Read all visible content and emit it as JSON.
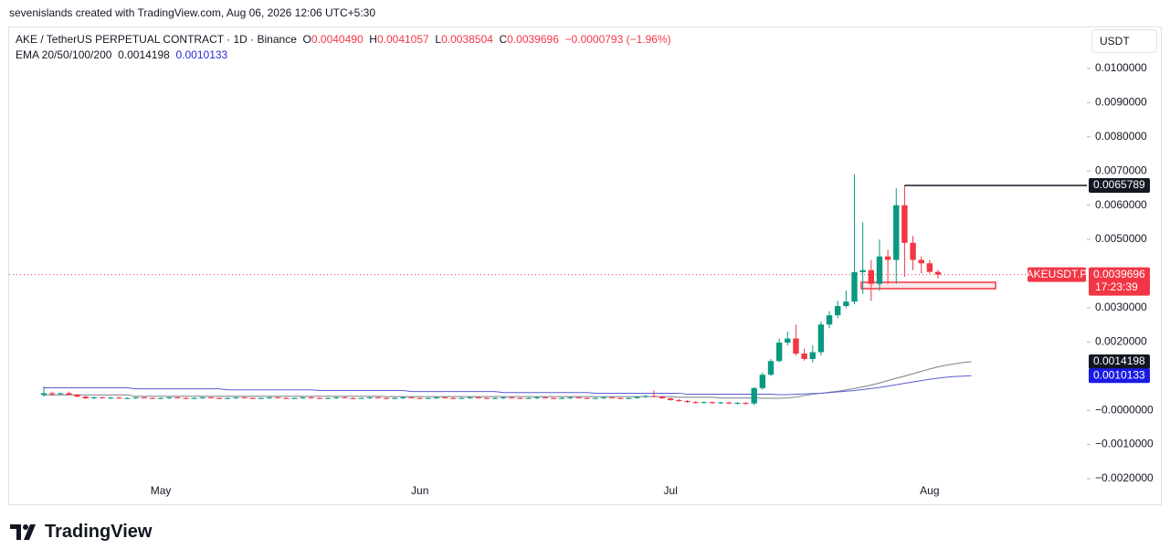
{
  "header": {
    "attribution": "sevenislands created with TradingView.com, Aug 06, 2026 12:06 UTC+5:30"
  },
  "footer": {
    "brand": "TradingView"
  },
  "chart_data": {
    "type": "candlestick",
    "title": "AKE / TetherUS PERPETUAL CONTRACT · 1D · Binance",
    "ohlc_legend": [
      [
        "O",
        "0.0040490"
      ],
      [
        "H",
        "0.0041057"
      ],
      [
        "L",
        "0.0038504"
      ],
      [
        "C",
        "0.0039696"
      ]
    ],
    "change": "−0.0000793 (−1.96%)",
    "ema_legend": "EMA 20/50/100/200",
    "currency": "USDT",
    "symbol": "AKEUSDT.P",
    "countdown": "17:23:39",
    "up_color": "#089981",
    "down_color": "#f23645",
    "ylim": [
      -0.002,
      0.0112
    ],
    "yticks": [
      {
        "value": 0.01,
        "label": "0.0100000"
      },
      {
        "value": 0.009,
        "label": "0.0090000"
      },
      {
        "value": 0.008,
        "label": "0.0080000"
      },
      {
        "value": 0.007,
        "label": "0.0070000"
      },
      {
        "value": 0.006,
        "label": "0.0060000"
      },
      {
        "value": 0.005,
        "label": "0.0050000"
      },
      {
        "value": 0.003,
        "label": "0.0030000"
      },
      {
        "value": 0.002,
        "label": "0.0020000"
      },
      {
        "value": 0,
        "label": "−0.0000000"
      },
      {
        "value": -0.001,
        "label": "−0.0010000"
      },
      {
        "value": -0.002,
        "label": "−0.0020000"
      }
    ],
    "high_line": 0.0065789,
    "categories": [
      null,
      null,
      null,
      null,
      null,
      null,
      null,
      null,
      null,
      null,
      null,
      null,
      null,
      null,
      "May",
      null,
      null,
      null,
      null,
      null,
      null,
      null,
      null,
      null,
      null,
      null,
      null,
      null,
      null,
      null,
      null,
      null,
      null,
      null,
      null,
      null,
      null,
      null,
      null,
      null,
      null,
      null,
      null,
      null,
      null,
      "Jun",
      null,
      null,
      null,
      null,
      null,
      null,
      null,
      null,
      null,
      null,
      null,
      null,
      null,
      null,
      null,
      null,
      null,
      null,
      null,
      null,
      null,
      null,
      null,
      null,
      null,
      null,
      null,
      null,
      null,
      "Jul",
      null,
      null,
      null,
      null,
      null,
      null,
      null,
      null,
      null,
      null,
      null,
      null,
      null,
      null,
      null,
      null,
      null,
      null,
      null,
      null,
      null,
      null,
      null,
      null,
      null,
      null,
      null,
      null,
      null,
      null,
      "Aug",
      null,
      null,
      null,
      null,
      null
    ],
    "ohlc": [
      [
        0.00045,
        0.0007,
        0.0004,
        0.0005
      ],
      [
        0.0005,
        0.00055,
        0.00042,
        0.00048
      ],
      [
        0.00048,
        0.00052,
        0.00044,
        0.0005
      ],
      [
        0.0005,
        0.00055,
        0.00043,
        0.00046
      ],
      [
        0.00046,
        0.00048,
        0.00038,
        0.0004
      ],
      [
        0.0004,
        0.00042,
        0.00033,
        0.00035
      ],
      [
        0.00035,
        0.0004,
        0.00033,
        0.00038
      ],
      [
        0.00038,
        0.0004,
        0.00034,
        0.00036
      ],
      [
        0.00036,
        0.00039,
        0.00033,
        0.00037
      ],
      [
        0.00037,
        0.0004,
        0.00034,
        0.00035
      ],
      [
        0.00035,
        0.00038,
        0.00033,
        0.00036
      ],
      [
        0.00036,
        0.00039,
        0.00033,
        0.00038
      ],
      [
        0.00038,
        0.0004,
        0.00035,
        0.00036
      ],
      [
        0.00036,
        0.00038,
        0.00033,
        0.00035
      ],
      [
        0.00035,
        0.00038,
        0.00033,
        0.00036
      ],
      [
        0.00036,
        0.00039,
        0.00033,
        0.00038
      ],
      [
        0.00038,
        0.0004,
        0.00035,
        0.00036
      ],
      [
        0.00036,
        0.00038,
        0.00033,
        0.00035
      ],
      [
        0.00035,
        0.00038,
        0.00033,
        0.00036
      ],
      [
        0.00036,
        0.00039,
        0.00033,
        0.00038
      ],
      [
        0.00038,
        0.0004,
        0.00035,
        0.00036
      ],
      [
        0.00036,
        0.00038,
        0.00033,
        0.00035
      ],
      [
        0.00035,
        0.00038,
        0.00033,
        0.00036
      ],
      [
        0.00036,
        0.00039,
        0.00033,
        0.00038
      ],
      [
        0.00038,
        0.0004,
        0.00035,
        0.00036
      ],
      [
        0.00036,
        0.00038,
        0.00033,
        0.00035
      ],
      [
        0.00035,
        0.00038,
        0.00033,
        0.00036
      ],
      [
        0.00036,
        0.00039,
        0.00033,
        0.00038
      ],
      [
        0.00038,
        0.0004,
        0.00035,
        0.00036
      ],
      [
        0.00036,
        0.00038,
        0.00033,
        0.00035
      ],
      [
        0.00035,
        0.00038,
        0.00033,
        0.00036
      ],
      [
        0.00036,
        0.00039,
        0.00033,
        0.00038
      ],
      [
        0.00038,
        0.0004,
        0.00035,
        0.00036
      ],
      [
        0.00036,
        0.00038,
        0.00033,
        0.00035
      ],
      [
        0.00035,
        0.00038,
        0.00033,
        0.00036
      ],
      [
        0.00036,
        0.00039,
        0.00033,
        0.00038
      ],
      [
        0.00038,
        0.0004,
        0.00035,
        0.00036
      ],
      [
        0.00036,
        0.00038,
        0.00033,
        0.00035
      ],
      [
        0.00035,
        0.00038,
        0.00033,
        0.00036
      ],
      [
        0.00036,
        0.00039,
        0.00033,
        0.00038
      ],
      [
        0.00038,
        0.0004,
        0.00035,
        0.00036
      ],
      [
        0.00036,
        0.00038,
        0.00033,
        0.00035
      ],
      [
        0.00035,
        0.00038,
        0.00033,
        0.00036
      ],
      [
        0.00036,
        0.00039,
        0.00033,
        0.00038
      ],
      [
        0.00038,
        0.0004,
        0.00035,
        0.00036
      ],
      [
        0.00036,
        0.00038,
        0.00033,
        0.00035
      ],
      [
        0.00035,
        0.00038,
        0.00033,
        0.00036
      ],
      [
        0.00036,
        0.00039,
        0.00033,
        0.00038
      ],
      [
        0.00038,
        0.0004,
        0.00035,
        0.00036
      ],
      [
        0.00036,
        0.00038,
        0.00033,
        0.00035
      ],
      [
        0.00035,
        0.00038,
        0.00033,
        0.00036
      ],
      [
        0.00036,
        0.00039,
        0.00033,
        0.00038
      ],
      [
        0.00038,
        0.0004,
        0.00035,
        0.00036
      ],
      [
        0.00036,
        0.00038,
        0.00033,
        0.00035
      ],
      [
        0.00035,
        0.00038,
        0.00033,
        0.00036
      ],
      [
        0.00036,
        0.00039,
        0.00033,
        0.00038
      ],
      [
        0.00038,
        0.0004,
        0.00035,
        0.00036
      ],
      [
        0.00036,
        0.00038,
        0.00033,
        0.00035
      ],
      [
        0.00035,
        0.00038,
        0.00033,
        0.00036
      ],
      [
        0.00036,
        0.00039,
        0.00033,
        0.00038
      ],
      [
        0.00038,
        0.0004,
        0.00035,
        0.00036
      ],
      [
        0.00036,
        0.00038,
        0.00033,
        0.00035
      ],
      [
        0.00035,
        0.00038,
        0.00033,
        0.00036
      ],
      [
        0.00036,
        0.00039,
        0.00033,
        0.00038
      ],
      [
        0.00038,
        0.0004,
        0.00035,
        0.00036
      ],
      [
        0.00036,
        0.00038,
        0.00033,
        0.00035
      ],
      [
        0.00035,
        0.00038,
        0.00033,
        0.00036
      ],
      [
        0.00036,
        0.00039,
        0.00033,
        0.00038
      ],
      [
        0.00038,
        0.0004,
        0.00035,
        0.00036
      ],
      [
        0.00036,
        0.00038,
        0.00033,
        0.00035
      ],
      [
        0.00035,
        0.00038,
        0.00033,
        0.00036
      ],
      [
        0.00036,
        0.0004,
        0.00034,
        0.00039
      ],
      [
        0.00039,
        0.00045,
        0.00036,
        0.00042
      ],
      [
        0.00042,
        0.00058,
        0.00038,
        0.0004
      ],
      [
        0.0004,
        0.00042,
        0.00034,
        0.00035
      ],
      [
        0.00035,
        0.00037,
        0.00028,
        0.0003
      ],
      [
        0.0003,
        0.00033,
        0.00025,
        0.00027
      ],
      [
        0.00027,
        0.0003,
        0.00022,
        0.00024
      ],
      [
        0.00024,
        0.00027,
        0.0002,
        0.00022
      ],
      [
        0.00022,
        0.00026,
        0.0002,
        0.00024
      ],
      [
        0.00024,
        0.00026,
        0.00019,
        0.00021
      ],
      [
        0.00021,
        0.00025,
        0.00019,
        0.00023
      ],
      [
        0.00023,
        0.00025,
        0.00018,
        0.0002
      ],
      [
        0.0002,
        0.00024,
        0.00017,
        0.00022
      ],
      [
        0.00022,
        0.00024,
        0.00016,
        0.0002
      ],
      [
        0.0002,
        0.00068,
        0.00015,
        0.00065
      ],
      [
        0.00065,
        0.0011,
        0.0006,
        0.00104
      ],
      [
        0.00104,
        0.0015,
        0.001,
        0.00144
      ],
      [
        0.00144,
        0.0021,
        0.0014,
        0.00198
      ],
      [
        0.00198,
        0.0023,
        0.0019,
        0.0021
      ],
      [
        0.0021,
        0.0025,
        0.0016,
        0.00166
      ],
      [
        0.00166,
        0.0018,
        0.00145,
        0.0015
      ],
      [
        0.0015,
        0.0019,
        0.0014,
        0.0017
      ],
      [
        0.0017,
        0.0026,
        0.0016,
        0.00251
      ],
      [
        0.00251,
        0.0029,
        0.0024,
        0.00278
      ],
      [
        0.00278,
        0.0032,
        0.0027,
        0.00305
      ],
      [
        0.00305,
        0.0035,
        0.003,
        0.00318
      ],
      [
        0.00318,
        0.0069,
        0.0031,
        0.00404
      ],
      [
        0.00404,
        0.0055,
        0.0034,
        0.0041
      ],
      [
        0.0041,
        0.0044,
        0.0032,
        0.0037
      ],
      [
        0.0037,
        0.005,
        0.0035,
        0.0045
      ],
      [
        0.0045,
        0.0047,
        0.0037,
        0.0044
      ],
      [
        0.0044,
        0.0065,
        0.0037,
        0.006
      ],
      [
        0.006,
        0.0065789,
        0.0039,
        0.0049
      ],
      [
        0.0049,
        0.0051,
        0.0041,
        0.0044
      ],
      [
        0.0044,
        0.0045,
        0.004,
        0.0043
      ],
      [
        0.0043,
        0.0044,
        0.004,
        0.004049
      ],
      [
        0.004049,
        0.0041057,
        0.0038504,
        0.0039696
      ]
    ],
    "ema": [
      {
        "color": "#7d7f88",
        "label_color": "#131722",
        "values": [
          0.00045,
          0.00045,
          0.00045,
          0.00045,
          0.00045,
          0.00045,
          0.00045,
          0.00045,
          0.00045,
          0.00045,
          0.00045,
          0.00041,
          0.00041,
          0.00041,
          0.00041,
          0.00041,
          0.00041,
          0.00041,
          0.00041,
          0.00041,
          0.00041,
          0.00041,
          0.00041,
          0.00041,
          0.00041,
          0.00041,
          0.00041,
          0.00041,
          0.00041,
          0.00041,
          0.00041,
          0.00041,
          0.00041,
          0.00041,
          0.00041,
          0.00041,
          0.00041,
          0.00041,
          0.00041,
          0.00041,
          0.00041,
          0.0004,
          0.0004,
          0.0004,
          0.0004,
          0.0004,
          0.0004,
          0.0004,
          0.0004,
          0.0004,
          0.0004,
          0.0004,
          0.0004,
          0.0004,
          0.0004,
          0.0004,
          0.0004,
          0.0004,
          0.0004,
          0.0004,
          0.0004,
          0.0004,
          0.0004,
          0.0004,
          0.0004,
          0.0004,
          0.0004,
          0.0004,
          0.0004,
          0.0004,
          0.0004,
          0.0004,
          0.0004,
          0.0004,
          0.0004,
          0.0004,
          0.00038,
          0.00038,
          0.00038,
          0.00038,
          0.00038,
          0.00036,
          0.00036,
          0.00036,
          0.00036,
          0.00036,
          0.00035,
          0.00035,
          0.00035,
          0.00036,
          0.00039,
          0.00043,
          0.00047,
          0.0005,
          0.00053,
          0.00056,
          0.0006,
          0.00064,
          0.00069,
          0.00074,
          0.0008,
          0.00087,
          0.00094,
          0.001,
          0.00107,
          0.00114,
          0.00121,
          0.00127,
          0.00132,
          0.00136,
          0.0014,
          0.0014198
        ]
      },
      {
        "color": "#5b5bd6",
        "label_color": "#1a1ae6",
        "values": [
          0.00066,
          0.00066,
          0.00066,
          0.00066,
          0.00066,
          0.00066,
          0.00066,
          0.00066,
          0.00066,
          0.00066,
          0.00066,
          0.00063,
          0.00063,
          0.00063,
          0.00063,
          0.00063,
          0.00063,
          0.00063,
          0.00063,
          0.00063,
          0.00063,
          0.00063,
          0.0006,
          0.0006,
          0.0006,
          0.0006,
          0.0006,
          0.0006,
          0.0006,
          0.0006,
          0.0006,
          0.0006,
          0.0006,
          0.00058,
          0.00058,
          0.00058,
          0.00058,
          0.00058,
          0.00058,
          0.00058,
          0.00058,
          0.00058,
          0.00058,
          0.00058,
          0.00055,
          0.00055,
          0.00055,
          0.00055,
          0.00055,
          0.00055,
          0.00055,
          0.00055,
          0.00055,
          0.00055,
          0.00055,
          0.00052,
          0.00052,
          0.00052,
          0.00052,
          0.00052,
          0.00052,
          0.00052,
          0.00052,
          0.00052,
          0.00052,
          0.00052,
          0.0005,
          0.0005,
          0.0005,
          0.0005,
          0.0005,
          0.0005,
          0.0005,
          0.0005,
          0.0005,
          0.0005,
          0.0005,
          0.00047,
          0.00047,
          0.00047,
          0.00047,
          0.00047,
          0.00047,
          0.00047,
          0.00047,
          0.00047,
          0.00047,
          0.00047,
          0.00046,
          0.00046,
          0.00047,
          0.00048,
          0.00049,
          0.0005,
          0.00052,
          0.00054,
          0.00056,
          0.00058,
          0.00061,
          0.00064,
          0.00067,
          0.00071,
          0.00075,
          0.00079,
          0.00083,
          0.00087,
          0.00091,
          0.00094,
          0.00097,
          0.00099,
          0.001,
          0.0010133
        ]
      }
    ]
  }
}
